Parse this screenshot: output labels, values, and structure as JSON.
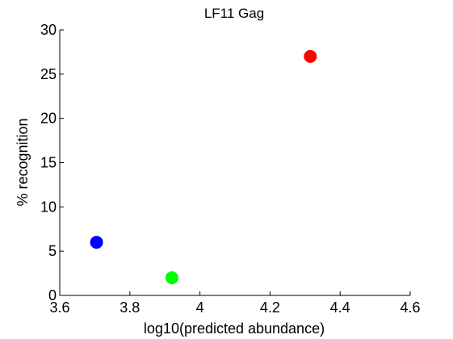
{
  "chart_data": {
    "type": "scatter",
    "title": "LF11 Gag",
    "xlabel": "log10(predicted abundance)",
    "ylabel": "% recognition",
    "xlim": [
      3.6,
      4.6
    ],
    "ylim": [
      0,
      30
    ],
    "xticks": [
      "3.6",
      "3.8",
      "4",
      "4.2",
      "4.4",
      "4.6"
    ],
    "yticks": [
      "0",
      "5",
      "10",
      "15",
      "20",
      "25",
      "30"
    ],
    "grid": false,
    "points": [
      {
        "x": 3.705,
        "y": 6,
        "color": "#0000ff"
      },
      {
        "x": 3.92,
        "y": 2,
        "color": "#00ff00"
      },
      {
        "x": 4.315,
        "y": 27,
        "color": "#ff0000"
      }
    ]
  }
}
